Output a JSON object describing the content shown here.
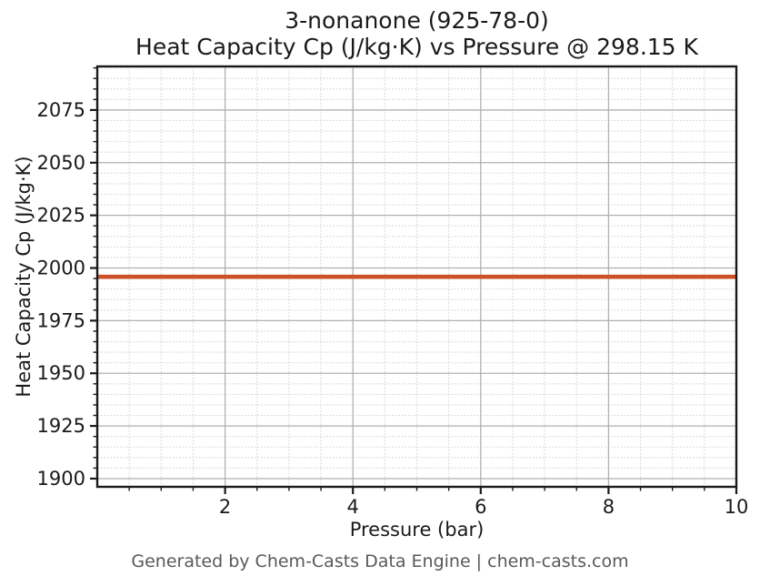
{
  "chart": {
    "title_line1": "3-nonanone (925-78-0)",
    "title_line2": "Heat Capacity Cp (J/kg·K) vs Pressure @ 298.15 K",
    "xlabel": "Pressure (bar)",
    "ylabel": "Heat Capacity Cp (J/kg·K)",
    "footer": "Generated by Chem-Casts Data Engine | chem-casts.com"
  },
  "chart_data": {
    "type": "line",
    "title": "3-nonanone (925-78-0)",
    "subtitle": "Heat Capacity Cp (J/kg·K) vs Pressure @ 298.15 K",
    "xlabel": "Pressure (bar)",
    "ylabel": "Heat Capacity Cp (J/kg·K)",
    "temperature_K": "298.15",
    "cas_number": "925-78-0",
    "compound": "3-nonanone",
    "xlim": [
      0,
      10
    ],
    "ylim": [
      1896.1,
      2095.7
    ],
    "xticks": [
      2,
      4,
      6,
      8,
      10
    ],
    "yticks": [
      1900,
      1925,
      1950,
      1975,
      2000,
      2025,
      2050,
      2075
    ],
    "x_minor_step": 0.5,
    "y_minor_step": 5,
    "grid": {
      "major": true,
      "minor": true,
      "major_style": "solid",
      "minor_style": "dotted"
    },
    "legend": "none",
    "series": [
      {
        "name": "Heat Capacity Cp",
        "color": "#cc5126",
        "linewidth": 4.6,
        "x": [
          0,
          10
        ],
        "values": [
          1995.8,
          1995.8
        ],
        "note": "constant Cp ≈ 1995.8 J/kg·K across 0–10 bar"
      }
    ],
    "colors": {
      "line": "#cc5126",
      "major_grid": "#b0b0b0",
      "minor_grid": "#d9d9d9",
      "spine": "#1a1a1a",
      "text": "#1a1a1a",
      "footer_text": "#595959"
    }
  }
}
